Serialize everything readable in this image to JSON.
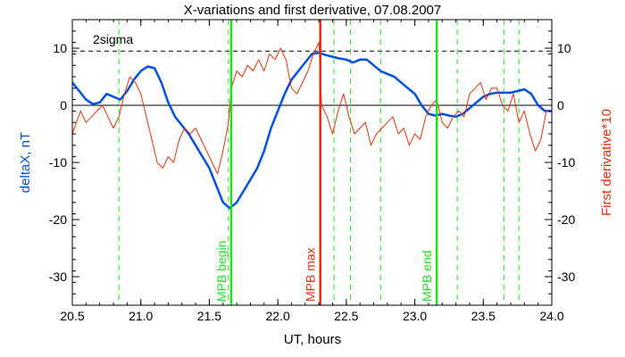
{
  "chart_data": {
    "type": "line",
    "title": "X-variations and first derivative, 07.08.2007",
    "xlabel": "UT, hours",
    "ylabel_left": "deltaX, nT",
    "ylabel_right": "First derivative*10",
    "xlim": [
      20.5,
      24.0
    ],
    "ylim": [
      -35,
      15
    ],
    "x_ticks": [
      20.5,
      21.0,
      21.5,
      22.0,
      22.5,
      23.0,
      23.5,
      24.0
    ],
    "x_tick_labels": [
      "20.5",
      "21.0",
      "21.5",
      "22.0",
      "22.5",
      "23.0",
      "23.5",
      "24.0"
    ],
    "y_ticks": [
      10,
      0,
      -10,
      -20,
      -30
    ],
    "y_tick_labels": [
      "10",
      "0",
      "-10",
      "-20",
      "-30"
    ],
    "threshold": {
      "label": "2sigma",
      "value": 9.5
    },
    "zero_line": 0,
    "colors": {
      "deltaX": "#0050e0",
      "derivative": "#e03010",
      "marker_green": "#22dd22",
      "marker_red": "#e03010"
    },
    "markers": [
      {
        "x": 21.66,
        "label": "MPB begin",
        "color": "#22dd22"
      },
      {
        "x": 22.31,
        "label": "MPB max",
        "color": "#e03010"
      },
      {
        "x": 23.16,
        "label": "MPB end",
        "color": "#22dd22"
      }
    ],
    "dashed_lines": [
      20.84,
      21.64,
      22.41,
      22.53,
      22.75,
      23.16,
      23.31,
      23.65,
      23.76
    ],
    "series": [
      {
        "key": "deltaX",
        "x": [
          20.5,
          20.55,
          20.6,
          20.65,
          20.7,
          20.75,
          20.8,
          20.85,
          20.9,
          20.95,
          21.0,
          21.05,
          21.1,
          21.15,
          21.2,
          21.25,
          21.3,
          21.35,
          21.4,
          21.45,
          21.5,
          21.55,
          21.6,
          21.65,
          21.7,
          21.75,
          21.8,
          21.85,
          21.9,
          21.95,
          22.0,
          22.05,
          22.1,
          22.15,
          22.2,
          22.25,
          22.3,
          22.35,
          22.4,
          22.45,
          22.5,
          22.55,
          22.6,
          22.65,
          22.7,
          22.75,
          22.8,
          22.85,
          22.9,
          22.95,
          23.0,
          23.05,
          23.1,
          23.15,
          23.2,
          23.25,
          23.3,
          23.35,
          23.4,
          23.45,
          23.5,
          23.55,
          23.6,
          23.65,
          23.7,
          23.75,
          23.8,
          23.85,
          23.9,
          23.95,
          24.0
        ],
        "y": [
          4,
          2.5,
          1,
          0.2,
          0.5,
          2,
          1.5,
          1,
          2.5,
          4.5,
          6,
          6.8,
          6.5,
          4,
          0.5,
          -2,
          -3.5,
          -5,
          -7,
          -9,
          -11,
          -14,
          -17,
          -18,
          -17,
          -15,
          -13,
          -11,
          -8,
          -4,
          -1,
          2,
          4.5,
          6,
          7.5,
          9,
          9.2,
          8.8,
          8.5,
          8.2,
          8,
          7.5,
          8,
          8,
          7,
          6,
          5.5,
          5,
          4,
          3,
          2,
          0,
          -1.5,
          -1.8,
          -1.5,
          -1.8,
          -2,
          -1.5,
          -0.5,
          0.5,
          1.5,
          2,
          2.2,
          2.2,
          2.2,
          2.5,
          2.8,
          2,
          0,
          -1,
          -1
        ]
      },
      {
        "key": "derivative",
        "x": [
          20.5,
          20.53,
          20.56,
          20.6,
          20.64,
          20.68,
          20.72,
          20.76,
          20.8,
          20.84,
          20.88,
          20.92,
          20.96,
          21.0,
          21.04,
          21.08,
          21.12,
          21.16,
          21.2,
          21.24,
          21.28,
          21.32,
          21.36,
          21.4,
          21.44,
          21.48,
          21.52,
          21.56,
          21.6,
          21.64,
          21.66,
          21.7,
          21.74,
          21.78,
          21.82,
          21.86,
          21.9,
          21.94,
          21.98,
          22.02,
          22.06,
          22.1,
          22.14,
          22.18,
          22.22,
          22.26,
          22.3,
          22.32,
          22.36,
          22.4,
          22.44,
          22.48,
          22.52,
          22.56,
          22.6,
          22.64,
          22.68,
          22.72,
          22.76,
          22.8,
          22.84,
          22.88,
          22.92,
          22.96,
          23.0,
          23.04,
          23.08,
          23.12,
          23.16,
          23.2,
          23.24,
          23.28,
          23.32,
          23.36,
          23.4,
          23.44,
          23.48,
          23.52,
          23.56,
          23.6,
          23.64,
          23.68,
          23.72,
          23.76,
          23.8,
          23.84,
          23.88,
          23.92,
          23.96,
          24.0
        ],
        "y": [
          -5,
          -3,
          -1,
          -3,
          -2,
          -1,
          0,
          -2,
          -4,
          -2,
          2,
          5,
          4,
          2,
          -2,
          -6,
          -10,
          -11,
          -9,
          -10,
          -6,
          -4,
          -5,
          -4,
          -6,
          -8,
          -10,
          -12,
          -8,
          -3,
          3,
          6,
          5,
          7,
          6,
          8,
          6,
          9,
          8,
          10,
          8,
          3,
          2,
          4,
          6,
          9,
          11,
          0,
          -2,
          -5,
          -1,
          2,
          -2,
          -5,
          -4,
          -3,
          -7,
          -5,
          -4,
          -3,
          -2,
          -5,
          -4,
          -7,
          -5,
          -6,
          -2,
          0,
          1,
          -3,
          -4,
          -2,
          -1,
          -2,
          2,
          3,
          4,
          1,
          3,
          3,
          0,
          -1,
          2,
          -3,
          -1,
          -5,
          -8,
          -6,
          -1,
          -1
        ]
      }
    ]
  }
}
